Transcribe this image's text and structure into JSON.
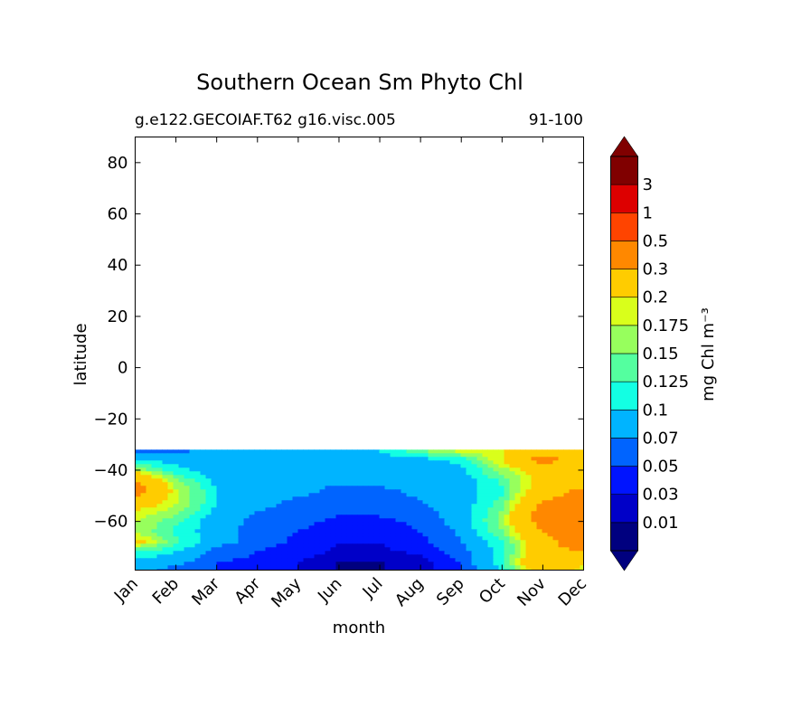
{
  "chart_data": {
    "type": "heatmap",
    "title": "Southern Ocean Sm Phyto Chl",
    "subtitle_left": "g.e122.GECOIAF.T62 g16.visc.005",
    "subtitle_right": "91-100",
    "xlabel": "month",
    "ylabel": "latitude",
    "x_categories": [
      "Jan",
      "Feb",
      "Mar",
      "Apr",
      "May",
      "Jun",
      "Jul",
      "Aug",
      "Sep",
      "Oct",
      "Nov",
      "Dec"
    ],
    "yticks": [
      80,
      60,
      40,
      20,
      0,
      -20,
      -40,
      -60
    ],
    "ylim": [
      -79,
      90
    ],
    "data_lat_range": [
      -79,
      -32
    ],
    "colorbar": {
      "label": "mg Chl m⁻³",
      "levels": [
        "0.01",
        "0.03",
        "0.05",
        "0.07",
        "0.1",
        "0.125",
        "0.15",
        "0.175",
        "0.2",
        "0.3",
        "0.5",
        "1",
        "3"
      ],
      "colors": [
        "#00007f",
        "#0000c8",
        "#0014ff",
        "#0064ff",
        "#00b4ff",
        "#13ffe3",
        "#54ff9f",
        "#97ff5d",
        "#d9ff1b",
        "#ffcc00",
        "#ff8800",
        "#ff4400",
        "#dd0000",
        "#800000"
      ],
      "extend": "both"
    },
    "rows": [
      {
        "lat": -32,
        "values": [
          0.06,
          0.06,
          0.08,
          0.08,
          0.09,
          0.09,
          0.1,
          0.15,
          0.2,
          0.2,
          0.25,
          0.25
        ]
      },
      {
        "lat": -36,
        "values": [
          0.09,
          0.09,
          0.08,
          0.08,
          0.08,
          0.08,
          0.09,
          0.09,
          0.11,
          0.2,
          0.35,
          0.22
        ]
      },
      {
        "lat": -40,
        "values": [
          0.17,
          0.11,
          0.08,
          0.08,
          0.08,
          0.08,
          0.08,
          0.08,
          0.09,
          0.16,
          0.25,
          0.22
        ]
      },
      {
        "lat": -44,
        "values": [
          0.3,
          0.15,
          0.09,
          0.08,
          0.08,
          0.08,
          0.08,
          0.08,
          0.085,
          0.13,
          0.22,
          0.23
        ]
      },
      {
        "lat": -48,
        "values": [
          0.35,
          0.18,
          0.1,
          0.08,
          0.08,
          0.06,
          0.065,
          0.075,
          0.085,
          0.12,
          0.25,
          0.32
        ]
      },
      {
        "lat": -52,
        "values": [
          0.25,
          0.18,
          0.1,
          0.08,
          0.065,
          0.06,
          0.06,
          0.07,
          0.085,
          0.13,
          0.3,
          0.35
        ]
      },
      {
        "lat": -56,
        "values": [
          0.2,
          0.16,
          0.09,
          0.07,
          0.06,
          0.055,
          0.055,
          0.06,
          0.085,
          0.15,
          0.35,
          0.4
        ]
      },
      {
        "lat": -60,
        "values": [
          0.18,
          0.13,
          0.08,
          0.065,
          0.055,
          0.045,
          0.045,
          0.055,
          0.08,
          0.16,
          0.35,
          0.4
        ]
      },
      {
        "lat": -64,
        "values": [
          0.17,
          0.12,
          0.08,
          0.06,
          0.05,
          0.04,
          0.04,
          0.05,
          0.075,
          0.15,
          0.3,
          0.38
        ]
      },
      {
        "lat": -68,
        "values": [
          0.22,
          0.13,
          0.08,
          0.06,
          0.045,
          0.03,
          0.03,
          0.045,
          0.07,
          0.12,
          0.25,
          0.4
        ]
      },
      {
        "lat": -72,
        "values": [
          0.12,
          0.1,
          0.06,
          0.05,
          0.04,
          0.025,
          0.025,
          0.035,
          0.06,
          0.11,
          0.25,
          0.3
        ]
      },
      {
        "lat": -76,
        "values": [
          0.09,
          0.08,
          0.05,
          0.045,
          0.03,
          0.008,
          0.008,
          0.02,
          0.05,
          0.12,
          0.3,
          0.2
        ]
      },
      {
        "lat": -79,
        "values": [
          0.08,
          0.06,
          0.05,
          0.045,
          0.03,
          0.008,
          0.008,
          0.02,
          0.05,
          0.1,
          0.25,
          0.18
        ]
      }
    ]
  }
}
